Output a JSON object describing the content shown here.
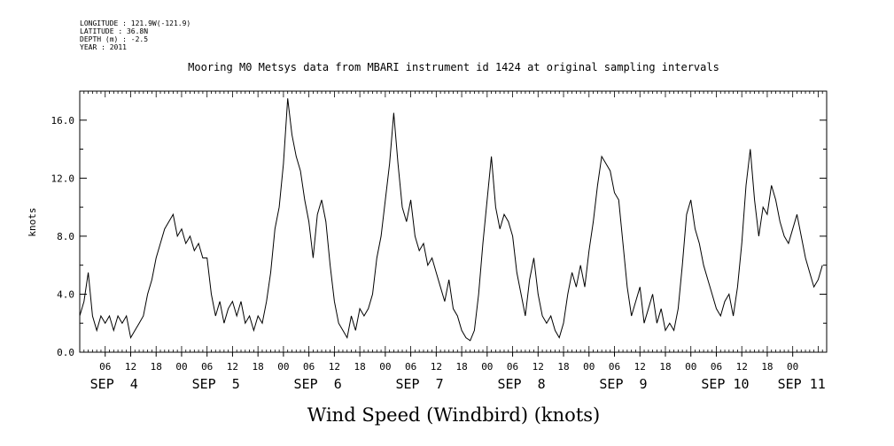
{
  "header": {
    "longitude": "LONGITUDE : 121.9W(-121.9)",
    "latitude": "LATITUDE : 36.8N",
    "depth": "DEPTH (m) : -2.5",
    "year": "YEAR : 2011"
  },
  "chart_data": {
    "type": "line",
    "title": "Mooring M0 Metsys data from MBARI instrument id 1424 at original sampling intervals",
    "xlabel": "Wind Speed (Windbird) (knots)",
    "ylabel": "knots",
    "ylim": [
      0,
      18
    ],
    "xlim": [
      0,
      176
    ],
    "x_unit": "hours since SEP 4 00:00",
    "yticks": [
      "0.0",
      "4.0",
      "8.0",
      "12.0",
      "16.0"
    ],
    "ytick_values": [
      0,
      4,
      8,
      12,
      16
    ],
    "xticks": [
      {
        "x": 6,
        "label": "06"
      },
      {
        "x": 12,
        "label": "12"
      },
      {
        "x": 18,
        "label": "18"
      },
      {
        "x": 24,
        "label": "00"
      },
      {
        "x": 30,
        "label": "06"
      },
      {
        "x": 36,
        "label": "12"
      },
      {
        "x": 42,
        "label": "18"
      },
      {
        "x": 48,
        "label": "00"
      },
      {
        "x": 54,
        "label": "06"
      },
      {
        "x": 60,
        "label": "12"
      },
      {
        "x": 66,
        "label": "18"
      },
      {
        "x": 72,
        "label": "00"
      },
      {
        "x": 78,
        "label": "06"
      },
      {
        "x": 84,
        "label": "12"
      },
      {
        "x": 90,
        "label": "18"
      },
      {
        "x": 96,
        "label": "00"
      },
      {
        "x": 102,
        "label": "06"
      },
      {
        "x": 108,
        "label": "12"
      },
      {
        "x": 114,
        "label": "18"
      },
      {
        "x": 120,
        "label": "00"
      },
      {
        "x": 126,
        "label": "06"
      },
      {
        "x": 132,
        "label": "12"
      },
      {
        "x": 138,
        "label": "18"
      },
      {
        "x": 144,
        "label": "00"
      },
      {
        "x": 150,
        "label": "06"
      },
      {
        "x": 156,
        "label": "12"
      },
      {
        "x": 162,
        "label": "18"
      },
      {
        "x": 168,
        "label": "00"
      }
    ],
    "date_labels": [
      {
        "x": 6,
        "label": "SEP  4"
      },
      {
        "x": 30,
        "label": "SEP  5"
      },
      {
        "x": 54,
        "label": "SEP  6"
      },
      {
        "x": 78,
        "label": "SEP  7"
      },
      {
        "x": 102,
        "label": "SEP  8"
      },
      {
        "x": 126,
        "label": "SEP  9"
      },
      {
        "x": 150,
        "label": "SEP 10"
      },
      {
        "x": 168,
        "label": "SEP 11"
      }
    ],
    "series": [
      {
        "values": [
          [
            0,
            2.5
          ],
          [
            1,
            3.5
          ],
          [
            2,
            5.5
          ],
          [
            3,
            2.5
          ],
          [
            4,
            1.5
          ],
          [
            5,
            2.5
          ],
          [
            6,
            2.0
          ],
          [
            7,
            2.5
          ],
          [
            8,
            1.5
          ],
          [
            9,
            2.5
          ],
          [
            10,
            2.0
          ],
          [
            11,
            2.5
          ],
          [
            12,
            1.0
          ],
          [
            13,
            1.5
          ],
          [
            14,
            2.0
          ],
          [
            15,
            2.5
          ],
          [
            16,
            4.0
          ],
          [
            17,
            5.0
          ],
          [
            18,
            6.5
          ],
          [
            19,
            7.5
          ],
          [
            20,
            8.5
          ],
          [
            21,
            9.0
          ],
          [
            22,
            9.5
          ],
          [
            23,
            8.0
          ],
          [
            24,
            8.5
          ],
          [
            25,
            7.5
          ],
          [
            26,
            8.0
          ],
          [
            27,
            7.0
          ],
          [
            28,
            7.5
          ],
          [
            29,
            6.5
          ],
          [
            30,
            6.5
          ],
          [
            31,
            4.0
          ],
          [
            32,
            2.5
          ],
          [
            33,
            3.5
          ],
          [
            34,
            2.0
          ],
          [
            35,
            3.0
          ],
          [
            36,
            3.5
          ],
          [
            37,
            2.5
          ],
          [
            38,
            3.5
          ],
          [
            39,
            2.0
          ],
          [
            40,
            2.5
          ],
          [
            41,
            1.5
          ],
          [
            42,
            2.5
          ],
          [
            43,
            2.0
          ],
          [
            44,
            3.5
          ],
          [
            45,
            5.5
          ],
          [
            46,
            8.5
          ],
          [
            47,
            10.0
          ],
          [
            48,
            13.0
          ],
          [
            49,
            17.5
          ],
          [
            50,
            15.0
          ],
          [
            51,
            13.5
          ],
          [
            52,
            12.5
          ],
          [
            53,
            10.5
          ],
          [
            54,
            9.0
          ],
          [
            55,
            6.5
          ],
          [
            56,
            9.5
          ],
          [
            57,
            10.5
          ],
          [
            58,
            9.0
          ],
          [
            59,
            6.0
          ],
          [
            60,
            3.5
          ],
          [
            61,
            2.0
          ],
          [
            62,
            1.5
          ],
          [
            63,
            1.0
          ],
          [
            64,
            2.5
          ],
          [
            65,
            1.5
          ],
          [
            66,
            3.0
          ],
          [
            67,
            2.5
          ],
          [
            68,
            3.0
          ],
          [
            69,
            4.0
          ],
          [
            70,
            6.5
          ],
          [
            71,
            8.0
          ],
          [
            72,
            10.5
          ],
          [
            73,
            13.0
          ],
          [
            74,
            16.5
          ],
          [
            75,
            13.0
          ],
          [
            76,
            10.0
          ],
          [
            77,
            9.0
          ],
          [
            78,
            10.5
          ],
          [
            79,
            8.0
          ],
          [
            80,
            7.0
          ],
          [
            81,
            7.5
          ],
          [
            82,
            6.0
          ],
          [
            83,
            6.5
          ],
          [
            84,
            5.5
          ],
          [
            85,
            4.5
          ],
          [
            86,
            3.5
          ],
          [
            87,
            5.0
          ],
          [
            88,
            3.0
          ],
          [
            89,
            2.5
          ],
          [
            90,
            1.5
          ],
          [
            91,
            1.0
          ],
          [
            92,
            0.8
          ],
          [
            93,
            1.5
          ],
          [
            94,
            4.0
          ],
          [
            95,
            7.5
          ],
          [
            96,
            10.5
          ],
          [
            97,
            13.5
          ],
          [
            98,
            10.0
          ],
          [
            99,
            8.5
          ],
          [
            100,
            9.5
          ],
          [
            101,
            9.0
          ],
          [
            102,
            8.0
          ],
          [
            103,
            5.5
          ],
          [
            104,
            4.0
          ],
          [
            105,
            2.5
          ],
          [
            106,
            5.0
          ],
          [
            107,
            6.5
          ],
          [
            108,
            4.0
          ],
          [
            109,
            2.5
          ],
          [
            110,
            2.0
          ],
          [
            111,
            2.5
          ],
          [
            112,
            1.5
          ],
          [
            113,
            1.0
          ],
          [
            114,
            2.0
          ],
          [
            115,
            4.0
          ],
          [
            116,
            5.5
          ],
          [
            117,
            4.5
          ],
          [
            118,
            6.0
          ],
          [
            119,
            4.5
          ],
          [
            120,
            7.0
          ],
          [
            121,
            9.0
          ],
          [
            122,
            11.5
          ],
          [
            123,
            13.5
          ],
          [
            124,
            13.0
          ],
          [
            125,
            12.5
          ],
          [
            126,
            11.0
          ],
          [
            127,
            10.5
          ],
          [
            128,
            7.5
          ],
          [
            129,
            4.5
          ],
          [
            130,
            2.5
          ],
          [
            131,
            3.5
          ],
          [
            132,
            4.5
          ],
          [
            133,
            2.0
          ],
          [
            134,
            3.0
          ],
          [
            135,
            4.0
          ],
          [
            136,
            2.0
          ],
          [
            137,
            3.0
          ],
          [
            138,
            1.5
          ],
          [
            139,
            2.0
          ],
          [
            140,
            1.5
          ],
          [
            141,
            3.0
          ],
          [
            142,
            6.0
          ],
          [
            143,
            9.5
          ],
          [
            144,
            10.5
          ],
          [
            145,
            8.5
          ],
          [
            146,
            7.5
          ],
          [
            147,
            6.0
          ],
          [
            148,
            5.0
          ],
          [
            149,
            4.0
          ],
          [
            150,
            3.0
          ],
          [
            151,
            2.5
          ],
          [
            152,
            3.5
          ],
          [
            153,
            4.0
          ],
          [
            154,
            2.5
          ],
          [
            155,
            4.5
          ],
          [
            156,
            7.5
          ],
          [
            157,
            11.5
          ],
          [
            158,
            14.0
          ],
          [
            159,
            10.5
          ],
          [
            160,
            8.0
          ],
          [
            161,
            10.0
          ],
          [
            162,
            9.5
          ],
          [
            163,
            11.5
          ],
          [
            164,
            10.5
          ],
          [
            165,
            9.0
          ],
          [
            166,
            8.0
          ],
          [
            167,
            7.5
          ],
          [
            168,
            8.5
          ],
          [
            169,
            9.5
          ],
          [
            170,
            8.0
          ],
          [
            171,
            6.5
          ],
          [
            172,
            5.5
          ],
          [
            173,
            4.5
          ],
          [
            174,
            5.0
          ],
          [
            175,
            6.0
          ]
        ]
      }
    ]
  }
}
